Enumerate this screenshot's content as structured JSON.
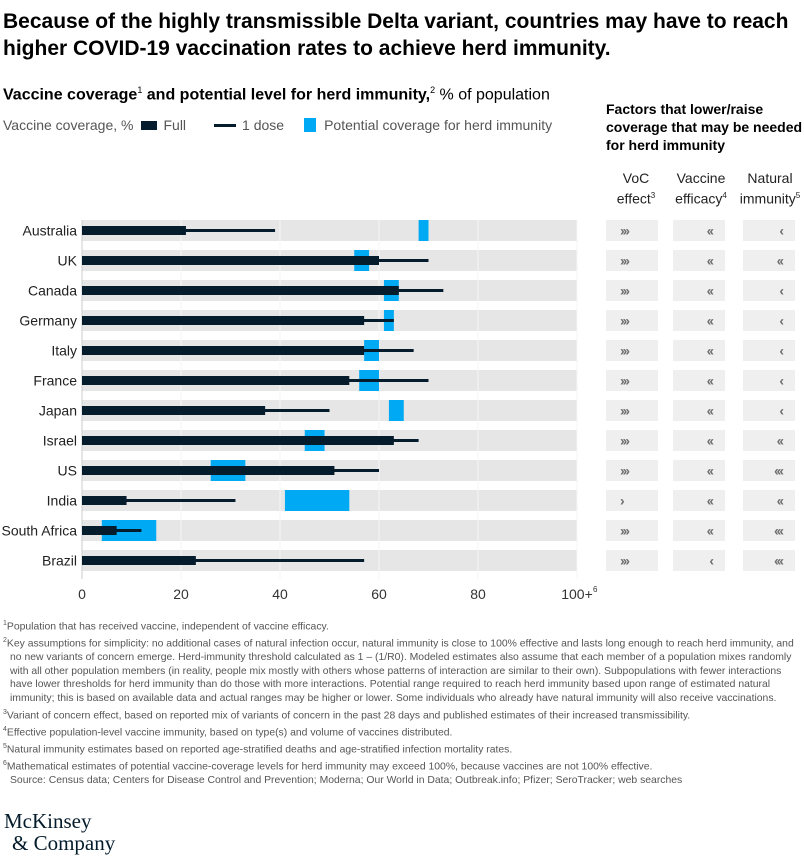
{
  "title": "Because of the highly transmissible Delta variant, countries may have to reach higher COVID-19 vaccination rates to achieve herd immunity.",
  "subtitle": {
    "bold_part1": "Vaccine coverage",
    "sup1": "1",
    "bold_part2": " and potential level for herd immunity,",
    "sup2": "2",
    "normal_part": " % of population"
  },
  "legend": {
    "prefix": "Vaccine coverage, %",
    "full": "Full",
    "dose": "1 dose",
    "herd": "Potential coverage for herd immunity"
  },
  "colors": {
    "full": "#051c2c",
    "herd": "#00a9f4",
    "band": "#e6e6e6",
    "factor_bg": "#efefef",
    "chevron": "#6e6e6e"
  },
  "factors": {
    "title": "Factors that lower/raise coverage that may be needed for herd immunity",
    "headers": [
      {
        "line1": "VoC",
        "line2": "effect",
        "sup": "3"
      },
      {
        "line1": "Vaccine",
        "line2": "efficacy",
        "sup": "4"
      },
      {
        "line1": "Natural",
        "line2": "immunity",
        "sup": "5"
      }
    ]
  },
  "chart_data": {
    "type": "bar",
    "title": "Vaccine coverage and potential level for herd immunity, % of population",
    "xlabel": "",
    "ylabel": "",
    "xlim": [
      0,
      100
    ],
    "xticks": [
      "0",
      "20",
      "40",
      "60",
      "80",
      "100+"
    ],
    "xtick_last_sup": "6",
    "grid": true,
    "categories": [
      "Australia",
      "UK",
      "Canada",
      "Germany",
      "Italy",
      "France",
      "Japan",
      "Israel",
      "US",
      "India",
      "South Africa",
      "Brazil"
    ],
    "series": [
      {
        "name": "Full",
        "values": [
          21,
          60,
          64,
          57,
          57,
          54,
          37,
          63,
          51,
          9,
          7,
          23
        ]
      },
      {
        "name": "1 dose",
        "values": [
          39,
          70,
          73,
          63,
          67,
          70,
          50,
          68,
          60,
          31,
          12,
          57
        ]
      },
      {
        "name": "Potential coverage for herd immunity",
        "ranges": [
          [
            68,
            70
          ],
          [
            55,
            58
          ],
          [
            61,
            64
          ],
          [
            61,
            63
          ],
          [
            57,
            60
          ],
          [
            56,
            60
          ],
          [
            62,
            65
          ],
          [
            45,
            49
          ],
          [
            26,
            33
          ],
          [
            41,
            54
          ],
          [
            4,
            15
          ],
          null
        ]
      }
    ],
    "factors": {
      "voc_effect": [
        ">>>",
        ">>>",
        ">>>",
        ">>>",
        ">>>",
        ">>>",
        ">>>",
        ">>>",
        ">>>",
        ">",
        ">>>",
        ">>>"
      ],
      "vaccine_efficacy": [
        "<<",
        "<<",
        "<<",
        "<<",
        "<<",
        "<<",
        "<<",
        "<<",
        "<<",
        "<<",
        "<<",
        "<"
      ],
      "natural_immunity": [
        "<",
        "<<",
        "<",
        "<",
        "<",
        "<",
        "<",
        "<<",
        "<<<",
        "<<",
        "<<<",
        "<<<"
      ]
    }
  },
  "footnotes": [
    {
      "num": "1",
      "text": "Population that has received vaccine, independent of vaccine efficacy."
    },
    {
      "num": "2",
      "text": "Key assumptions for simplicity: no additional cases of natural infection occur, natural immunity is close to 100% effective and lasts long enough to reach herd immunity, and no new variants of concern emerge. Herd-immunity threshold calculated as 1 – (1/R0). Modeled estimates also assume that each member of a population mixes randomly with all other population members (in reality, people mix mostly with others whose patterns of interaction are similar to their own). Subpopulations with fewer interactions have lower thresholds for herd immunity than do those with more interactions. Potential range required to reach herd immunity based upon range of estimated natural immunity; this is based on available data and actual ranges may be higher or lower. Some individuals who already have natural immunity will also receive vaccinations."
    },
    {
      "num": "3",
      "text": "Variant of concern effect, based on reported mix of variants of concern in the past 28 days and published estimates of their increased transmissibility."
    },
    {
      "num": "4",
      "text": "Effective population-level vaccine immunity, based on type(s) and volume of vaccines distributed."
    },
    {
      "num": "5",
      "text": "Natural immunity estimates based on reported age-stratified deaths and age-stratified infection mortality rates."
    },
    {
      "num": "6",
      "text": "Mathematical estimates of potential vaccine-coverage levels for herd immunity may exceed 100%, because vaccines are not 100% effective."
    }
  ],
  "source": "Source: Census data; Centers for Disease Control and Prevention; Moderna; Our World in Data; Outbreak.info; Pfizer; SeroTracker; web searches",
  "logo": {
    "line1": "McKinsey",
    "line2": "& Company"
  }
}
